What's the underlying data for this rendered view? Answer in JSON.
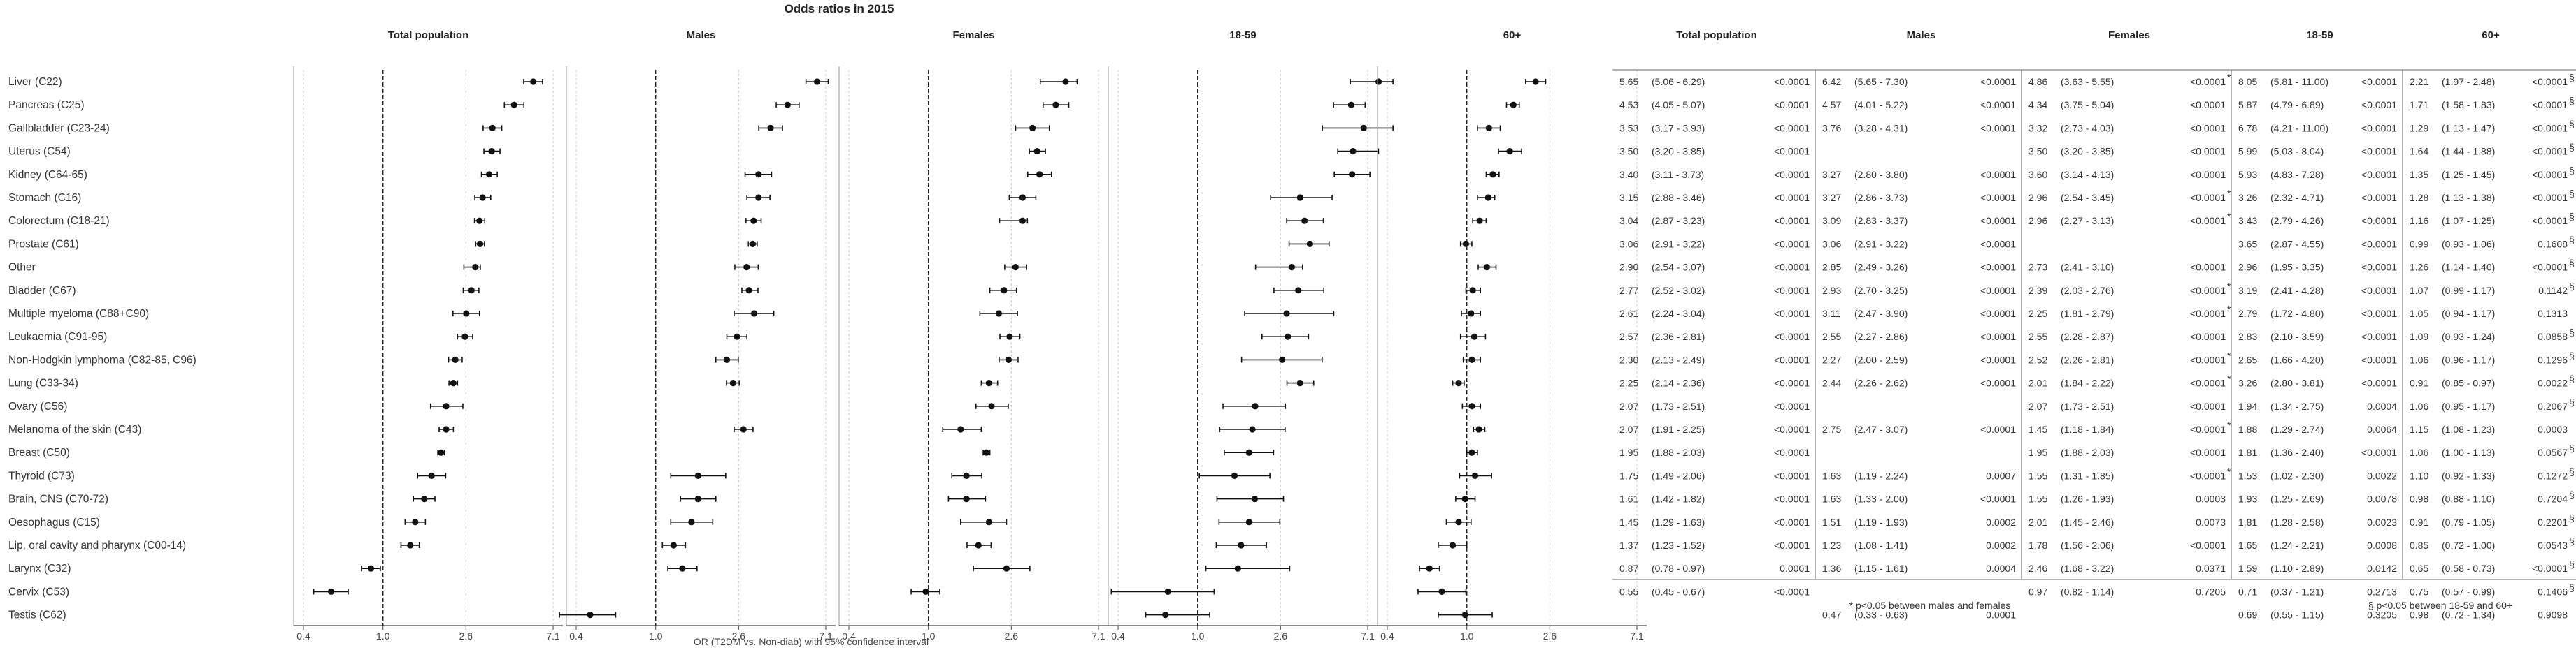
{
  "title": "Odds ratios in 2015",
  "x_axis_label": "OR (T2DM vs. Non-diab) with 95% confidence interval",
  "footnotes": {
    "sex": "* p<0.05 between males and females",
    "age": "§ p<0.05 between 18-59 and 60+"
  },
  "chart_data": {
    "type": "forest",
    "x_scale": "log",
    "x_ticks": [
      0.4,
      1.0,
      2.6,
      7.1
    ],
    "x_tick_labels": [
      "0.4",
      "1.0",
      "2.6",
      "7.1"
    ],
    "reference_line": 1.0,
    "categories": [
      "Liver (C22)",
      "Pancreas (C25)",
      "Gallbladder (C23-24)",
      "Uterus (C54)",
      "Kidney (C64-65)",
      "Stomach (C16)",
      "Colorectum (C18-21)",
      "Prostate (C61)",
      "Other",
      "Bladder (C67)",
      "Multiple myeloma (C88+C90)",
      "Leukaemia (C91-95)",
      "Non-Hodgkin lymphoma (C82-85, C96)",
      "Lung (C33-34)",
      "Ovary (C56)",
      "Melanoma of the skin (C43)",
      "Breast (C50)",
      "Thyroid (C73)",
      "Brain, CNS (C70-72)",
      "Oesophagus (C15)",
      "Lip, oral cavity and pharynx (C00-14)",
      "Larynx (C32)",
      "Cervix (C53)",
      "Testis (C62)"
    ],
    "panels": [
      {
        "name": "Total population",
        "or": [
          5.65,
          4.53,
          3.53,
          3.5,
          3.4,
          3.15,
          3.04,
          3.06,
          2.9,
          2.77,
          2.61,
          2.57,
          2.3,
          2.25,
          2.07,
          2.07,
          1.95,
          1.75,
          1.61,
          1.45,
          1.37,
          0.87,
          0.55,
          null
        ],
        "lo": [
          5.06,
          4.05,
          3.17,
          3.2,
          3.11,
          2.88,
          2.87,
          2.91,
          2.54,
          2.52,
          2.24,
          2.36,
          2.13,
          2.14,
          1.73,
          1.91,
          1.88,
          1.49,
          1.42,
          1.29,
          1.23,
          0.78,
          0.45,
          null
        ],
        "hi": [
          6.29,
          5.07,
          3.93,
          3.85,
          3.73,
          3.46,
          3.23,
          3.22,
          3.07,
          3.02,
          3.04,
          2.81,
          2.49,
          2.36,
          2.51,
          2.25,
          2.03,
          2.06,
          1.82,
          1.63,
          1.52,
          0.97,
          0.67,
          null
        ],
        "p": [
          "<0.0001",
          "<0.0001",
          "<0.0001",
          "<0.0001",
          "<0.0001",
          "<0.0001",
          "<0.0001",
          "<0.0001",
          "<0.0001",
          "<0.0001",
          "<0.0001",
          "<0.0001",
          "<0.0001",
          "<0.0001",
          "<0.0001",
          "<0.0001",
          "<0.0001",
          "<0.0001",
          "<0.0001",
          "<0.0001",
          "<0.0001",
          "0.0001",
          "<0.0001",
          ""
        ]
      },
      {
        "name": "Males",
        "or": [
          6.42,
          4.57,
          3.76,
          null,
          3.27,
          3.27,
          3.09,
          3.06,
          2.85,
          2.93,
          3.11,
          2.55,
          2.27,
          2.44,
          null,
          2.75,
          null,
          1.63,
          1.63,
          1.51,
          1.23,
          1.36,
          null,
          0.47
        ],
        "lo": [
          5.65,
          4.01,
          3.28,
          null,
          2.8,
          2.86,
          2.83,
          2.91,
          2.49,
          2.7,
          2.47,
          2.27,
          2.0,
          2.26,
          null,
          2.47,
          null,
          1.19,
          1.33,
          1.19,
          1.08,
          1.15,
          null,
          0.33
        ],
        "hi": [
          7.3,
          5.22,
          4.31,
          null,
          3.8,
          3.73,
          3.37,
          3.22,
          3.26,
          3.25,
          3.9,
          2.86,
          2.59,
          2.62,
          null,
          3.07,
          null,
          2.24,
          2.0,
          1.93,
          1.41,
          1.61,
          null,
          0.63
        ],
        "p": [
          "<0.0001",
          "<0.0001",
          "<0.0001",
          "",
          "<0.0001",
          "<0.0001",
          "<0.0001",
          "<0.0001",
          "<0.0001",
          "<0.0001",
          "<0.0001",
          "<0.0001",
          "<0.0001",
          "<0.0001",
          "",
          "<0.0001",
          "",
          "0.0007",
          "<0.0001",
          "0.0002",
          "0.0002",
          "0.0004",
          "",
          "0.0001"
        ]
      },
      {
        "name": "Females",
        "or": [
          4.86,
          4.34,
          3.32,
          3.5,
          3.6,
          2.96,
          2.96,
          null,
          2.73,
          2.39,
          2.25,
          2.55,
          2.52,
          2.01,
          2.07,
          1.45,
          1.95,
          1.55,
          1.55,
          2.01,
          1.78,
          2.46,
          0.97,
          null
        ],
        "lo": [
          3.63,
          3.75,
          2.73,
          3.2,
          3.14,
          2.54,
          2.27,
          null,
          2.41,
          2.03,
          1.81,
          2.28,
          2.26,
          1.84,
          1.73,
          1.18,
          1.88,
          1.31,
          1.26,
          1.45,
          1.56,
          1.68,
          0.82,
          null
        ],
        "hi": [
          5.55,
          5.04,
          4.03,
          3.85,
          4.13,
          3.45,
          3.13,
          null,
          3.1,
          2.76,
          2.79,
          2.87,
          2.81,
          2.22,
          2.51,
          1.84,
          2.03,
          1.85,
          1.93,
          2.46,
          2.06,
          3.22,
          1.14,
          null
        ],
        "p": [
          "<0.0001",
          "<0.0001",
          "<0.0001",
          "<0.0001",
          "<0.0001",
          "<0.0001",
          "<0.0001",
          "",
          "<0.0001",
          "<0.0001",
          "<0.0001",
          "<0.0001",
          "<0.0001",
          "<0.0001",
          "<0.0001",
          "<0.0001",
          "<0.0001",
          "<0.0001",
          "0.0003",
          "0.0073",
          "<0.0001",
          "0.0371",
          "0.7205",
          ""
        ],
        "sex_diff": [
          true,
          false,
          false,
          false,
          false,
          true,
          true,
          false,
          false,
          true,
          true,
          false,
          true,
          true,
          false,
          true,
          false,
          true,
          false,
          false,
          false,
          false,
          false,
          false
        ]
      },
      {
        "name": "18-59",
        "or": [
          8.05,
          5.87,
          6.78,
          5.99,
          5.93,
          3.26,
          3.43,
          3.65,
          2.96,
          3.19,
          2.79,
          2.83,
          2.65,
          3.26,
          1.94,
          1.88,
          1.81,
          1.53,
          1.93,
          1.81,
          1.65,
          1.59,
          0.71,
          0.69
        ],
        "lo": [
          5.81,
          4.79,
          4.21,
          5.03,
          4.83,
          2.32,
          2.79,
          2.87,
          1.95,
          2.41,
          1.72,
          2.1,
          1.66,
          2.8,
          1.34,
          1.29,
          1.36,
          1.02,
          1.25,
          1.28,
          1.24,
          1.1,
          0.37,
          0.55
        ],
        "hi": [
          11.0,
          6.89,
          11.0,
          8.04,
          7.28,
          4.71,
          4.26,
          4.55,
          3.35,
          4.28,
          4.8,
          3.59,
          4.2,
          3.81,
          2.75,
          2.74,
          2.4,
          2.3,
          2.69,
          2.58,
          2.21,
          2.89,
          1.21,
          1.15
        ],
        "p": [
          "<0.0001",
          "<0.0001",
          "<0.0001",
          "<0.0001",
          "<0.0001",
          "<0.0001",
          "<0.0001",
          "<0.0001",
          "<0.0001",
          "<0.0001",
          "<0.0001",
          "<0.0001",
          "<0.0001",
          "<0.0001",
          "0.0004",
          "0.0064",
          "<0.0001",
          "0.0022",
          "0.0078",
          "0.0023",
          "0.0008",
          "0.0142",
          "0.2713",
          "0.3205"
        ]
      },
      {
        "name": "60+",
        "or": [
          2.21,
          1.71,
          1.29,
          1.64,
          1.35,
          1.28,
          1.16,
          0.99,
          1.26,
          1.07,
          1.05,
          1.09,
          1.06,
          0.91,
          1.06,
          1.15,
          1.06,
          1.1,
          0.98,
          0.91,
          0.85,
          0.65,
          0.75,
          0.98
        ],
        "lo": [
          1.97,
          1.58,
          1.13,
          1.44,
          1.25,
          1.13,
          1.07,
          0.93,
          1.14,
          0.99,
          0.94,
          0.93,
          0.96,
          0.85,
          0.95,
          1.08,
          1.0,
          0.92,
          0.88,
          0.79,
          0.72,
          0.58,
          0.57,
          0.72
        ],
        "hi": [
          2.48,
          1.83,
          1.47,
          1.88,
          1.45,
          1.38,
          1.25,
          1.06,
          1.4,
          1.17,
          1.17,
          1.24,
          1.17,
          0.97,
          1.17,
          1.23,
          1.13,
          1.33,
          1.1,
          1.05,
          1.0,
          0.73,
          0.99,
          1.34
        ],
        "p": [
          "<0.0001",
          "<0.0001",
          "<0.0001",
          "<0.0001",
          "<0.0001",
          "<0.0001",
          "<0.0001",
          "0.1608",
          "<0.0001",
          "0.1142",
          "0.1313",
          "0.0858",
          "0.1296",
          "0.0022",
          "0.2067",
          "0.0003",
          "0.0567",
          "0.1272",
          "0.7204",
          "0.2201",
          "0.0543",
          "<0.0001",
          "0.1406",
          "0.9098"
        ],
        "age_diff": [
          true,
          true,
          true,
          true,
          true,
          true,
          true,
          true,
          true,
          true,
          false,
          true,
          true,
          true,
          true,
          false,
          true,
          true,
          true,
          true,
          true,
          true,
          true,
          false
        ]
      }
    ],
    "grid": false,
    "legend": "none"
  }
}
